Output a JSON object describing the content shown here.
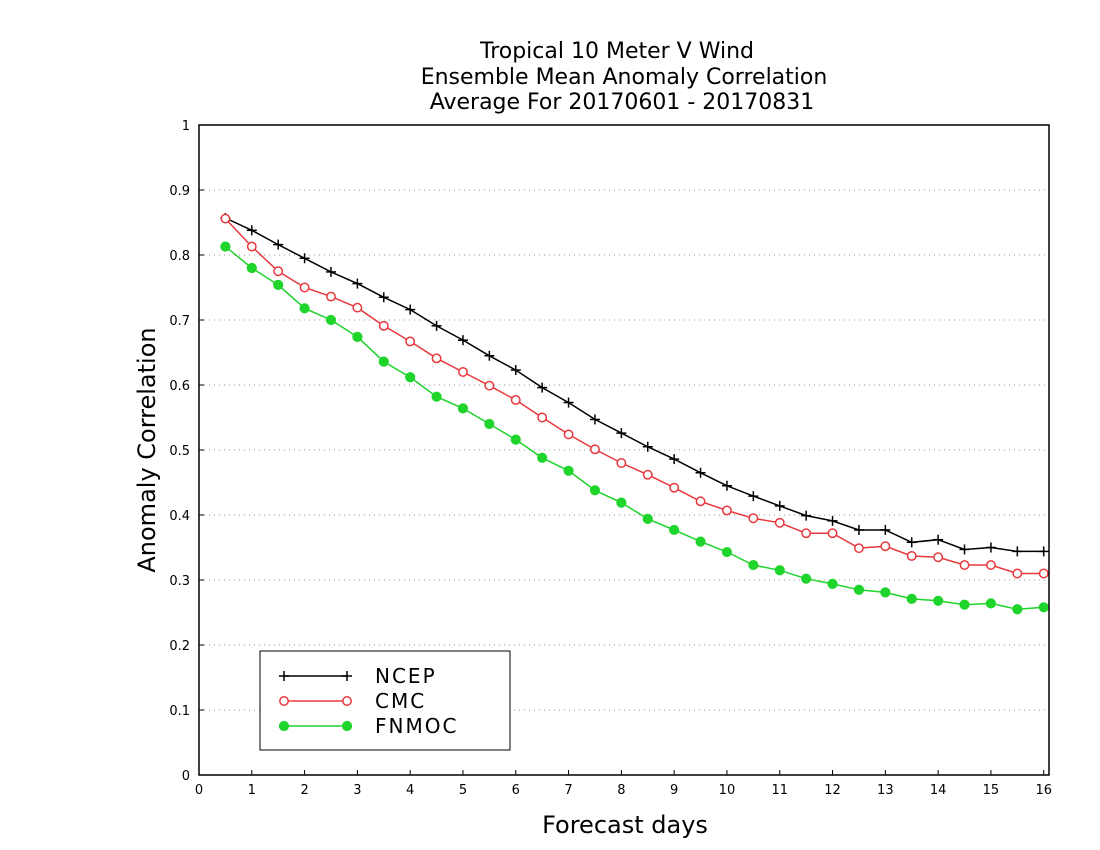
{
  "chart_data": {
    "type": "line",
    "title": [
      "Tropical 10 Meter V Wind",
      "Ensemble Mean Anomaly Correlation",
      "Average For 20170601 - 20170831"
    ],
    "xlabel": "Forecast days",
    "ylabel": "Anomaly Correlation",
    "xlim": [
      0,
      16.1
    ],
    "ylim": [
      0,
      1
    ],
    "xticks": [
      0,
      1,
      2,
      3,
      4,
      5,
      6,
      7,
      8,
      9,
      10,
      11,
      12,
      13,
      14,
      15,
      16
    ],
    "yticks": [
      0,
      0.1,
      0.2,
      0.3,
      0.4,
      0.5,
      0.6,
      0.7,
      0.8,
      0.9,
      1
    ],
    "ytick_labels": [
      "0",
      "0.1",
      "0.2",
      "0.3",
      "0.4",
      "0.5",
      "0.6",
      "0.7",
      "0.8",
      "0.9",
      "1"
    ],
    "grid": "horizontal dotted",
    "legend_position": "bottom-left",
    "x": [
      0.5,
      1,
      1.5,
      2,
      2.5,
      3,
      3.5,
      4,
      4.5,
      5,
      5.5,
      6,
      6.5,
      7,
      7.5,
      8,
      8.5,
      9,
      9.5,
      10,
      10.5,
      11,
      11.5,
      12,
      12.5,
      13,
      13.5,
      14,
      14.5,
      15,
      15.5,
      16
    ],
    "series": [
      {
        "name": "NCEP",
        "color": "#000000",
        "marker": "plus",
        "values": [
          0.857,
          0.838,
          0.816,
          0.795,
          0.774,
          0.756,
          0.735,
          0.716,
          0.691,
          0.669,
          0.645,
          0.623,
          0.596,
          0.573,
          0.547,
          0.526,
          0.505,
          0.486,
          0.465,
          0.445,
          0.429,
          0.414,
          0.399,
          0.391,
          0.377,
          0.377,
          0.358,
          0.362,
          0.347,
          0.35,
          0.344,
          0.344
        ]
      },
      {
        "name": "CMC",
        "color": "#e8383d",
        "marker": "open-circle",
        "values": [
          0.856,
          0.813,
          0.775,
          0.75,
          0.736,
          0.719,
          0.691,
          0.667,
          0.641,
          0.62,
          0.599,
          0.577,
          0.55,
          0.524,
          0.501,
          0.48,
          0.462,
          0.442,
          0.421,
          0.407,
          0.395,
          0.388,
          0.372,
          0.372,
          0.349,
          0.352,
          0.337,
          0.335,
          0.323,
          0.323,
          0.31,
          0.31
        ]
      },
      {
        "name": "FNMOC",
        "color": "#1fd42b",
        "marker": "filled-circle",
        "values": [
          0.813,
          0.78,
          0.754,
          0.718,
          0.7,
          0.674,
          0.636,
          0.612,
          0.582,
          0.564,
          0.54,
          0.516,
          0.488,
          0.468,
          0.438,
          0.419,
          0.394,
          0.377,
          0.359,
          0.343,
          0.323,
          0.315,
          0.302,
          0.294,
          0.285,
          0.281,
          0.271,
          0.268,
          0.262,
          0.264,
          0.255,
          0.258
        ]
      }
    ]
  }
}
